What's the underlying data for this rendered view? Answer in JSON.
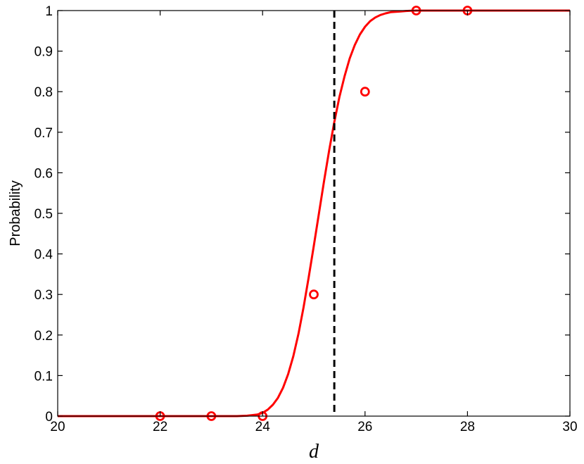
{
  "chart_data": {
    "type": "line",
    "xlabel": "d",
    "ylabel": "Probability",
    "xlim": [
      20,
      30
    ],
    "ylim": [
      0,
      1
    ],
    "x_ticks": [
      "20",
      "22",
      "24",
      "26",
      "28",
      "30"
    ],
    "y_ticks": [
      "0",
      "0.1",
      "0.2",
      "0.3",
      "0.4",
      "0.5",
      "0.6",
      "0.7",
      "0.8",
      "0.9",
      "1"
    ],
    "grid": false,
    "series": [
      {
        "kind": "fitted-curve",
        "style": "solid line",
        "color": "#ff0000",
        "x": [
          20,
          23.5,
          23.7,
          23.9,
          24.0,
          24.1,
          24.2,
          24.3,
          24.4,
          24.5,
          24.6,
          24.7,
          24.8,
          24.9,
          25.0,
          25.1,
          25.2,
          25.3,
          25.4,
          25.5,
          25.6,
          25.7,
          25.8,
          25.9,
          26.0,
          26.1,
          26.2,
          26.3,
          26.4,
          26.5,
          26.6,
          26.7,
          26.8,
          26.9,
          27.0,
          27.2,
          30
        ],
        "y": [
          0,
          0,
          0.001,
          0.004,
          0.008,
          0.016,
          0.028,
          0.045,
          0.07,
          0.104,
          0.148,
          0.203,
          0.268,
          0.342,
          0.42,
          0.5,
          0.58,
          0.655,
          0.725,
          0.787,
          0.838,
          0.882,
          0.915,
          0.941,
          0.96,
          0.974,
          0.983,
          0.989,
          0.993,
          0.996,
          0.997,
          0.998,
          0.999,
          0.9995,
          1.0,
          1.0,
          1.0
        ]
      },
      {
        "kind": "observed-points",
        "style": "circle markers",
        "color": "#ff0000",
        "x": [
          22,
          23,
          24,
          25,
          26,
          27,
          28
        ],
        "y": [
          0,
          0,
          0,
          0.3,
          0.8,
          1,
          1
        ]
      }
    ],
    "vertical_line": {
      "x": 25.4,
      "style": "dashed",
      "color": "#000000"
    }
  }
}
